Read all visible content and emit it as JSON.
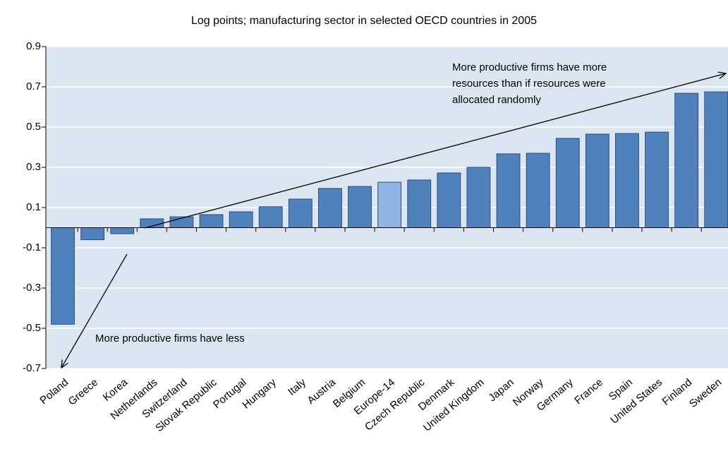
{
  "chart_data": {
    "type": "bar",
    "title": "Log points; manufacturing sector in selected OECD countries in 2005",
    "categories": [
      "Poland",
      "Greece",
      "Korea",
      "Netherlands",
      "Switzerland",
      "Slovak Republic",
      "Portugal",
      "Hungary",
      "Italy",
      "Austria",
      "Belgium",
      "Europe-14",
      "Czech Republic",
      "Denmark",
      "United Kingdom",
      "Japan",
      "Norway",
      "Germany",
      "France",
      "Spain",
      "United States",
      "Finland",
      "Sweden"
    ],
    "values": [
      -0.48,
      -0.06,
      -0.03,
      0.044,
      0.054,
      0.065,
      0.079,
      0.104,
      0.142,
      0.195,
      0.205,
      0.226,
      0.237,
      0.272,
      0.3,
      0.367,
      0.37,
      0.444,
      0.465,
      0.468,
      0.475,
      0.668,
      0.675
    ],
    "colors": [
      "#4f81bd",
      "#4f81bd",
      "#4f81bd",
      "#4f81bd",
      "#4f81bd",
      "#4f81bd",
      "#4f81bd",
      "#4f81bd",
      "#4f81bd",
      "#4f81bd",
      "#4f81bd",
      "#8db4e2",
      "#4f81bd",
      "#4f81bd",
      "#4f81bd",
      "#4f81bd",
      "#4f81bd",
      "#4f81bd",
      "#4f81bd",
      "#4f81bd",
      "#4f81bd",
      "#4f81bd",
      "#4f81bd"
    ],
    "ylim": [
      -0.7,
      0.9
    ],
    "yticks": [
      {
        "value": -0.7,
        "label": "-0.7"
      },
      {
        "value": -0.5,
        "label": "-0.5"
      },
      {
        "value": -0.3,
        "label": "-0.3"
      },
      {
        "value": -0.1,
        "label": "-0.1"
      },
      0.1,
      0.3,
      0.5,
      0.7,
      0.9
    ],
    "grid": true,
    "annotations": [
      {
        "lines": [
          "More productive firms have more",
          "resources than if resources were",
          "allocated randomly"
        ]
      },
      {
        "lines": [
          "More productive firms have less"
        ]
      }
    ]
  }
}
